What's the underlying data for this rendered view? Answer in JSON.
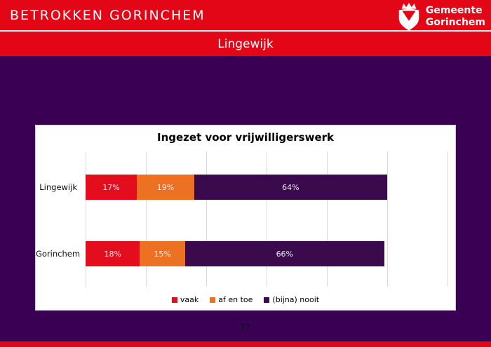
{
  "header": {
    "title": "BETROKKEN GORINCHEM",
    "subtitle": "Lingewijk",
    "logo": {
      "line1": "Gemeente",
      "line2": "Gorinchem"
    }
  },
  "colors": {
    "header_red": "#e30617",
    "background_purple": "#3a0053",
    "card_bg": "#ffffff",
    "gridline": "#d9d9d9",
    "bar_red": "#e30d1d",
    "bar_orange": "#ed7123",
    "bar_purple": "#3a0a4d"
  },
  "chart_data": {
    "type": "bar",
    "orientation": "horizontal",
    "stacked": true,
    "title": "Ingezet voor vrijwilligerswerk",
    "categories": [
      "Lingewijk",
      "Gorinchem"
    ],
    "series": [
      {
        "name": "vaak",
        "color": "#e30d1d",
        "values": [
          17,
          18
        ]
      },
      {
        "name": "af en toe",
        "color": "#ed7123",
        "values": [
          19,
          15
        ]
      },
      {
        "name": "(bijna) nooit",
        "color": "#3a0a4d",
        "values": [
          64,
          66
        ]
      }
    ],
    "value_suffix": "%",
    "xlim": [
      0,
      120
    ],
    "gridline_step": 20,
    "grid": true,
    "legend_position": "bottom",
    "xlabel": "",
    "ylabel": ""
  },
  "footer": {
    "page_number": "17"
  }
}
